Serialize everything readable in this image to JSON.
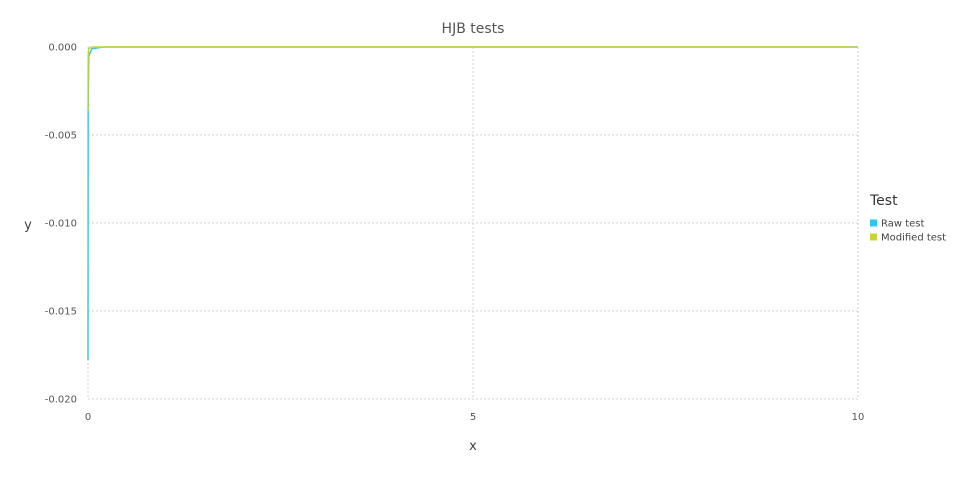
{
  "chart_data": {
    "type": "line",
    "title": "HJB tests",
    "xlabel": "x",
    "ylabel": "y",
    "xlim": [
      0,
      10
    ],
    "ylim": [
      -0.02,
      0.0
    ],
    "x_ticks": [
      0,
      5,
      10
    ],
    "x_tick_labels": [
      "0",
      "5",
      "10"
    ],
    "y_ticks": [
      0.0,
      -0.005,
      -0.01,
      -0.015,
      -0.02
    ],
    "y_tick_labels": [
      "0.000",
      "-0.005",
      "-0.010",
      "-0.015",
      "-0.020"
    ],
    "grid": true,
    "legend": {
      "title": "Test",
      "position": "right"
    },
    "series": [
      {
        "name": "Raw test",
        "color": "#2ec4f0",
        "points": [
          [
            0.0,
            -0.0178
          ],
          [
            0.002,
            -0.0036
          ],
          [
            0.01,
            -0.0005
          ],
          [
            0.05,
            -0.0001
          ],
          [
            0.2,
            0.0
          ],
          [
            1,
            0.0
          ],
          [
            5,
            0.0
          ],
          [
            10,
            0.0
          ]
        ]
      },
      {
        "name": "Modified test",
        "color": "#c8d432",
        "points": [
          [
            0.0,
            -0.0036
          ],
          [
            0.002,
            -0.0005
          ],
          [
            0.01,
            -0.0001
          ],
          [
            0.05,
            0.0
          ],
          [
            0.2,
            0.0
          ],
          [
            1,
            0.0
          ],
          [
            5,
            0.0
          ],
          [
            10,
            0.0
          ]
        ]
      }
    ]
  }
}
